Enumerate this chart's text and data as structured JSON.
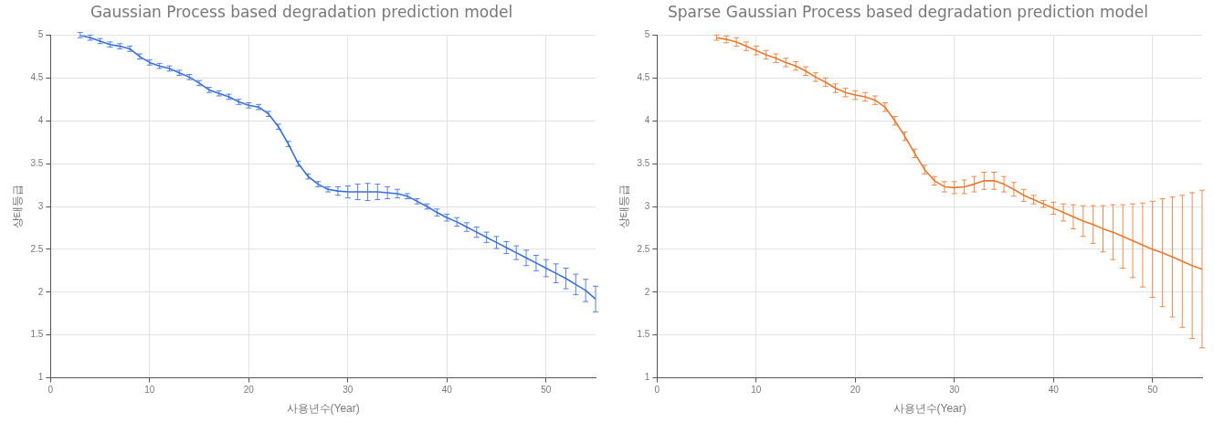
{
  "chart_data": [
    {
      "type": "line",
      "title": "Gaussian Process based degradation prediction model",
      "xlabel": "사용년수(Year)",
      "ylabel": "상태등급",
      "xlim": [
        0,
        55
      ],
      "ylim": [
        1,
        5
      ],
      "xticks": [
        0,
        10,
        20,
        30,
        40,
        50
      ],
      "yticks": [
        1,
        1.5,
        2,
        2.5,
        3,
        3.5,
        4,
        4.5,
        5
      ],
      "grid": true,
      "legend": false,
      "line_style": "solid",
      "x": [
        3,
        4,
        5,
        6,
        7,
        8,
        9,
        10,
        11,
        12,
        13,
        14,
        15,
        16,
        17,
        18,
        19,
        20,
        21,
        22,
        23,
        24,
        25,
        26,
        27,
        28,
        29,
        30,
        31,
        32,
        33,
        34,
        35,
        36,
        37,
        38,
        39,
        40,
        41,
        42,
        43,
        44,
        45,
        46,
        47,
        48,
        49,
        50,
        51,
        52,
        53,
        54,
        55
      ],
      "series": [
        {
          "color": "#3a6fd8",
          "values": [
            5.0,
            4.97,
            4.93,
            4.89,
            4.87,
            4.84,
            4.75,
            4.68,
            4.64,
            4.61,
            4.56,
            4.51,
            4.44,
            4.36,
            4.32,
            4.28,
            4.22,
            4.18,
            4.16,
            4.08,
            3.93,
            3.73,
            3.5,
            3.35,
            3.26,
            3.2,
            3.18,
            3.17,
            3.17,
            3.17,
            3.17,
            3.16,
            3.15,
            3.12,
            3.06,
            3.0,
            2.93,
            2.87,
            2.82,
            2.76,
            2.7,
            2.64,
            2.58,
            2.52,
            2.46,
            2.4,
            2.34,
            2.28,
            2.22,
            2.16,
            2.09,
            2.02,
            1.92
          ],
          "errors": [
            0.03,
            0.03,
            0.03,
            0.03,
            0.03,
            0.03,
            0.03,
            0.03,
            0.03,
            0.03,
            0.03,
            0.03,
            0.03,
            0.03,
            0.03,
            0.03,
            0.03,
            0.03,
            0.03,
            0.03,
            0.03,
            0.03,
            0.03,
            0.03,
            0.03,
            0.03,
            0.05,
            0.07,
            0.09,
            0.1,
            0.09,
            0.07,
            0.05,
            0.03,
            0.03,
            0.03,
            0.04,
            0.04,
            0.05,
            0.05,
            0.06,
            0.06,
            0.07,
            0.07,
            0.08,
            0.09,
            0.09,
            0.1,
            0.11,
            0.12,
            0.12,
            0.13,
            0.15
          ]
        }
      ]
    },
    {
      "type": "line",
      "title": "Sparse Gaussian Process based degradation prediction model",
      "xlabel": "사용년수(Year)",
      "ylabel": "상태등급",
      "xlim": [
        0,
        55
      ],
      "ylim": [
        1,
        5
      ],
      "xticks": [
        0,
        10,
        20,
        30,
        40,
        50
      ],
      "yticks": [
        1,
        1.5,
        2,
        2.5,
        3,
        3.5,
        4,
        4.5,
        5
      ],
      "grid": true,
      "legend": false,
      "line_style": "solid",
      "x": [
        6,
        7,
        8,
        9,
        10,
        11,
        12,
        13,
        14,
        15,
        16,
        17,
        18,
        19,
        20,
        21,
        22,
        23,
        24,
        25,
        26,
        27,
        28,
        29,
        30,
        31,
        32,
        33,
        34,
        35,
        36,
        37,
        38,
        39,
        40,
        41,
        42,
        43,
        44,
        45,
        46,
        47,
        48,
        49,
        50,
        51,
        52,
        53,
        54,
        55
      ],
      "series": [
        {
          "color": "#e8782f",
          "values": [
            4.97,
            4.95,
            4.92,
            4.87,
            4.82,
            4.77,
            4.73,
            4.68,
            4.64,
            4.58,
            4.51,
            4.45,
            4.38,
            4.33,
            4.3,
            4.28,
            4.24,
            4.16,
            4.0,
            3.82,
            3.62,
            3.43,
            3.3,
            3.23,
            3.22,
            3.23,
            3.26,
            3.3,
            3.3,
            3.26,
            3.2,
            3.13,
            3.08,
            3.03,
            2.98,
            2.93,
            2.88,
            2.83,
            2.79,
            2.74,
            2.7,
            2.65,
            2.6,
            2.55,
            2.5,
            2.46,
            2.41,
            2.36,
            2.31,
            2.27
          ],
          "errors": [
            0.03,
            0.04,
            0.05,
            0.05,
            0.05,
            0.05,
            0.05,
            0.05,
            0.05,
            0.05,
            0.05,
            0.05,
            0.05,
            0.05,
            0.05,
            0.05,
            0.05,
            0.05,
            0.05,
            0.05,
            0.05,
            0.05,
            0.05,
            0.06,
            0.07,
            0.08,
            0.09,
            0.1,
            0.1,
            0.09,
            0.08,
            0.07,
            0.05,
            0.04,
            0.07,
            0.1,
            0.14,
            0.18,
            0.22,
            0.27,
            0.32,
            0.37,
            0.43,
            0.49,
            0.56,
            0.63,
            0.7,
            0.77,
            0.85,
            0.92
          ]
        }
      ]
    }
  ]
}
